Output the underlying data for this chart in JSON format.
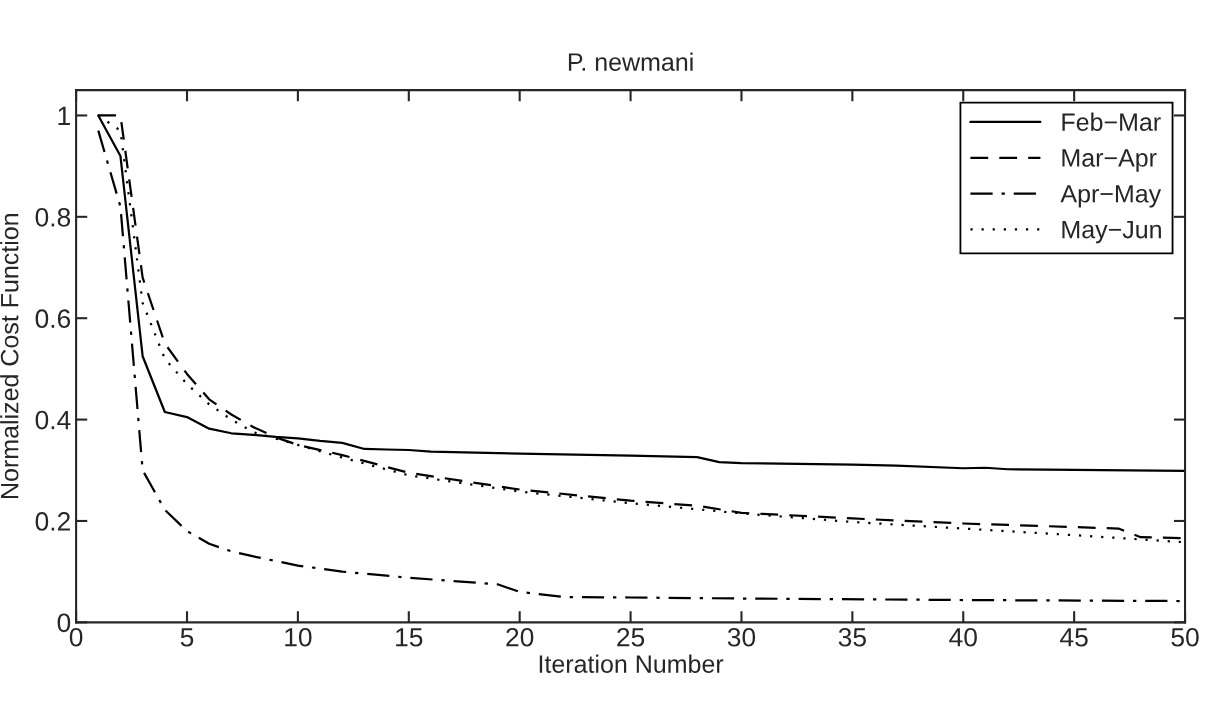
{
  "chart_data": {
    "type": "line",
    "title": "P. newmani",
    "xlabel": "Iteration Number",
    "ylabel": "Normalized Cost Function",
    "xlim": [
      0,
      50
    ],
    "xticks": [
      0,
      5,
      10,
      15,
      20,
      25,
      30,
      35,
      40,
      45,
      50
    ],
    "ylim": [
      0,
      1.05
    ],
    "yticks": [
      0,
      0.2,
      0.4,
      0.6,
      0.8,
      1
    ],
    "grid": false,
    "legend": "top right",
    "series": [
      {
        "name": "Feb−Mar",
        "color": "#000000",
        "line_style": "solid",
        "x": [
          1,
          2,
          3,
          4,
          5,
          6,
          7,
          8,
          9,
          10,
          11,
          12,
          13,
          14,
          15,
          16,
          17,
          18,
          20,
          25,
          28,
          29,
          30,
          35,
          37,
          40,
          41,
          42,
          45,
          50
        ],
        "values": [
          1.0,
          0.92,
          0.525,
          0.415,
          0.405,
          0.382,
          0.373,
          0.37,
          0.366,
          0.363,
          0.358,
          0.354,
          0.342,
          0.341,
          0.34,
          0.337,
          0.336,
          0.335,
          0.333,
          0.329,
          0.326,
          0.316,
          0.314,
          0.311,
          0.309,
          0.304,
          0.305,
          0.302,
          0.301,
          0.299
        ]
      },
      {
        "name": "Mar−Apr",
        "color": "#000000",
        "line_style": "dashed",
        "x": [
          1,
          2,
          3,
          4,
          5,
          6,
          7,
          8,
          9,
          10,
          12,
          15,
          20,
          25,
          28,
          30,
          35,
          40,
          45,
          47,
          48,
          50
        ],
        "values": [
          1.0,
          1.0,
          0.68,
          0.55,
          0.49,
          0.44,
          0.41,
          0.385,
          0.365,
          0.35,
          0.33,
          0.295,
          0.262,
          0.24,
          0.23,
          0.216,
          0.205,
          0.195,
          0.188,
          0.185,
          0.168,
          0.166
        ]
      },
      {
        "name": "Apr−May",
        "color": "#000000",
        "line_style": "dashdot",
        "x": [
          1,
          2,
          3,
          4,
          5,
          6,
          7,
          8,
          10,
          12,
          15,
          19,
          20,
          22,
          25,
          30,
          40,
          50
        ],
        "values": [
          0.97,
          0.82,
          0.3,
          0.222,
          0.18,
          0.155,
          0.14,
          0.13,
          0.112,
          0.1,
          0.088,
          0.075,
          0.06,
          0.05,
          0.049,
          0.047,
          0.044,
          0.042
        ]
      },
      {
        "name": "May−Jun",
        "color": "#000000",
        "line_style": "dotted",
        "x": [
          1,
          2,
          3,
          4,
          5,
          6,
          7,
          8,
          10,
          12,
          15,
          20,
          25,
          30,
          35,
          40,
          45,
          50
        ],
        "values": [
          1.0,
          0.97,
          0.63,
          0.52,
          0.47,
          0.43,
          0.4,
          0.375,
          0.35,
          0.325,
          0.29,
          0.258,
          0.235,
          0.215,
          0.198,
          0.185,
          0.172,
          0.158
        ]
      }
    ]
  }
}
